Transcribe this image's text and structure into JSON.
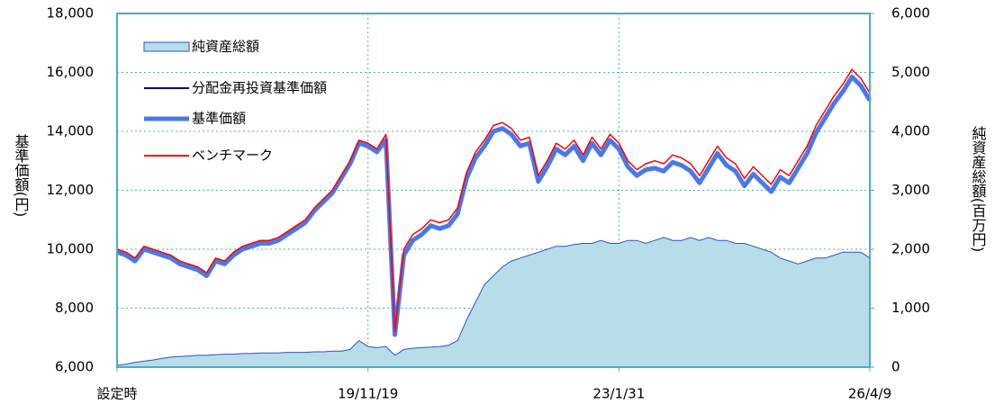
{
  "chart_data": {
    "type": "line",
    "y_label": "基準価額(円)",
    "y2_label": "純資産総額(百万円)",
    "categories": [
      "設定時",
      null,
      null,
      null,
      null,
      null,
      null,
      null,
      null,
      null,
      null,
      null,
      null,
      null,
      null,
      null,
      null,
      null,
      null,
      null,
      null,
      null,
      null,
      null,
      null,
      null,
      null,
      null,
      "19/11/19",
      null,
      null,
      null,
      null,
      null,
      null,
      null,
      null,
      null,
      null,
      null,
      null,
      null,
      null,
      null,
      null,
      null,
      null,
      null,
      null,
      null,
      null,
      null,
      null,
      null,
      null,
      null,
      "23/1/31",
      null,
      null,
      null,
      null,
      null,
      null,
      null,
      null,
      null,
      null,
      null,
      null,
      null,
      null,
      null,
      null,
      null,
      null,
      null,
      null,
      null,
      null,
      null,
      null,
      null,
      null,
      null,
      "26/4/9"
    ],
    "series": [
      {
        "name": "純資産総額",
        "color": "#b7dde8",
        "axis": "y2",
        "style": "area",
        "values": [
          30,
          50,
          80,
          100,
          120,
          150,
          170,
          180,
          190,
          200,
          200,
          210,
          220,
          220,
          230,
          230,
          240,
          240,
          240,
          250,
          250,
          250,
          260,
          260,
          270,
          270,
          300,
          450,
          350,
          330,
          350,
          200,
          300,
          320,
          330,
          340,
          350,
          370,
          450,
          800,
          1100,
          1400,
          1550,
          1700,
          1800,
          1850,
          1900,
          1950,
          2000,
          2050,
          2050,
          2080,
          2100,
          2100,
          2150,
          2100,
          2100,
          2150,
          2150,
          2100,
          2150,
          2200,
          2150,
          2150,
          2200,
          2150,
          2200,
          2150,
          2150,
          2100,
          2100,
          2050,
          2000,
          1950,
          1850,
          1800,
          1750,
          1800,
          1850,
          1850,
          1900,
          1950,
          1950,
          1950,
          1850
        ]
      },
      {
        "name": "分配金再投資基準価額",
        "color": "#000080",
        "values": [
          9950,
          9850,
          9650,
          10050,
          9950,
          9850,
          9750,
          9550,
          9450,
          9350,
          9150,
          9650,
          9550,
          9850,
          10050,
          10150,
          10250,
          10250,
          10350,
          10550,
          10750,
          10950,
          11350,
          11650,
          11950,
          12450,
          12950,
          13650,
          13550,
          13350,
          13750,
          7150,
          9850,
          10350,
          10550,
          10850,
          10750,
          10850,
          11250,
          12450,
          13150,
          13550,
          14050,
          14150,
          13950,
          13550,
          13650,
          12350,
          12850,
          13450,
          13250,
          13550,
          13050,
          13650,
          13250,
          13750,
          13450,
          12850,
          12550,
          12750,
          12800,
          12700,
          13000,
          12900,
          12700,
          12300,
          12800,
          13300,
          12900,
          12700,
          12200,
          12600,
          12300,
          12000,
          12500,
          12300,
          12800,
          13300,
          14000,
          14500,
          15000,
          15400,
          15900,
          15600,
          15100
        ]
      },
      {
        "name": "基準価額",
        "color": "#4a78e8",
        "width": 5,
        "values": [
          9900,
          9800,
          9600,
          10000,
          9900,
          9800,
          9700,
          9500,
          9400,
          9300,
          9100,
          9600,
          9500,
          9800,
          10000,
          10100,
          10200,
          10200,
          10300,
          10500,
          10700,
          10900,
          11300,
          11600,
          11900,
          12400,
          12900,
          13600,
          13500,
          13300,
          13700,
          7100,
          9800,
          10300,
          10500,
          10800,
          10700,
          10800,
          11200,
          12400,
          13100,
          13500,
          14000,
          14100,
          13900,
          13500,
          13600,
          12300,
          12800,
          13400,
          13200,
          13500,
          13000,
          13600,
          13200,
          13700,
          13400,
          12800,
          12500,
          12700,
          12750,
          12650,
          12950,
          12850,
          12650,
          12250,
          12750,
          13250,
          12850,
          12650,
          12150,
          12550,
          12250,
          11950,
          12450,
          12250,
          12750,
          13250,
          13950,
          14450,
          14950,
          15350,
          15850,
          15550,
          15050
        ]
      },
      {
        "name": "ベンチマーク",
        "color": "#ff0000",
        "values": [
          10000,
          9900,
          9700,
          10100,
          10000,
          9900,
          9800,
          9600,
          9500,
          9400,
          9200,
          9700,
          9600,
          9900,
          10100,
          10200,
          10300,
          10300,
          10400,
          10600,
          10800,
          11000,
          11400,
          11700,
          12000,
          12500,
          13000,
          13700,
          13600,
          13400,
          13900,
          7200,
          10000,
          10500,
          10700,
          11000,
          10900,
          11000,
          11400,
          12600,
          13300,
          13700,
          14200,
          14300,
          14100,
          13700,
          13800,
          12500,
          13000,
          13600,
          13400,
          13700,
          13200,
          13800,
          13400,
          13900,
          13600,
          13000,
          12700,
          12900,
          13000,
          12900,
          13200,
          13100,
          12900,
          12500,
          13000,
          13500,
          13100,
          12900,
          12400,
          12800,
          12500,
          12200,
          12700,
          12500,
          13000,
          13500,
          14200,
          14700,
          15200,
          15600,
          16100,
          15800,
          15300
        ]
      }
    ],
    "ylim": [
      6000,
      18000
    ],
    "yticks": [
      {
        "value": 6000,
        "label": "6,000"
      },
      {
        "value": 8000,
        "label": "8,000"
      },
      {
        "value": 10000,
        "label": "10,000"
      },
      {
        "value": 12000,
        "label": "12,000"
      },
      {
        "value": 14000,
        "label": "14,000"
      },
      {
        "value": 16000,
        "label": "16,000"
      },
      {
        "value": 18000,
        "label": "18,000"
      }
    ],
    "y2lim": [
      0,
      6000
    ],
    "y2ticks": [
      0,
      {
        "value": 1000,
        "label": "1,000"
      },
      {
        "value": 2000,
        "label": "2,000"
      },
      {
        "value": 3000,
        "label": "3,000"
      },
      {
        "value": 4000,
        "label": "4,000"
      },
      {
        "value": 5000,
        "label": "5,000"
      },
      {
        "value": 6000,
        "label": "6,000"
      }
    ],
    "grid": true,
    "legend": "top-left"
  }
}
